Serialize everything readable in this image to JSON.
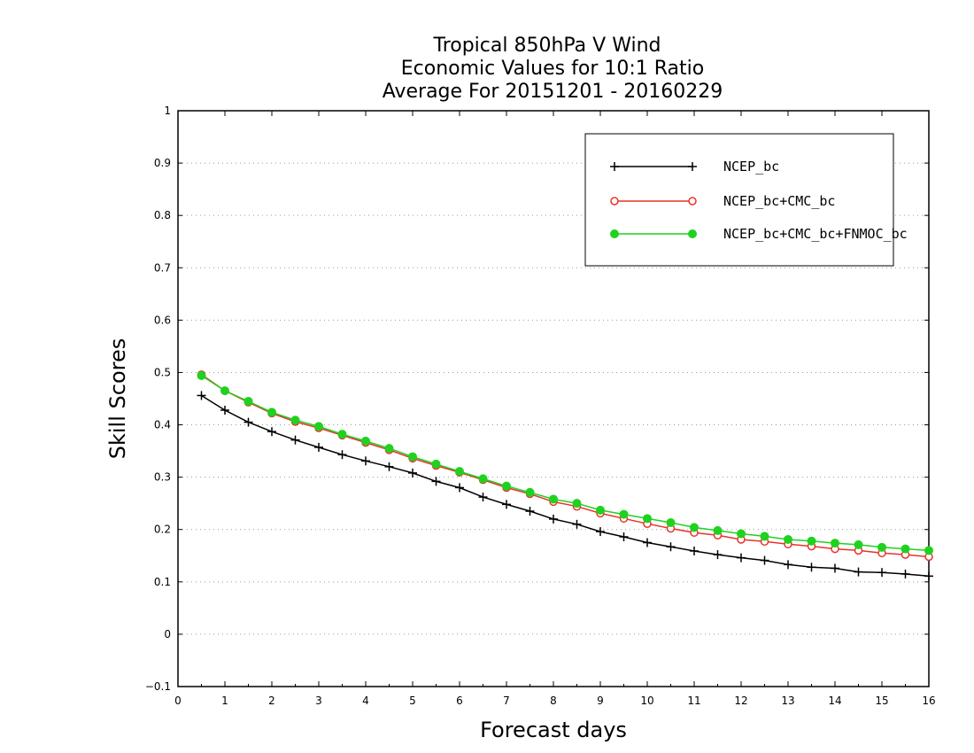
{
  "chart_data": {
    "type": "line",
    "title": [
      "Tropical 850hPa V Wind",
      "Economic Values for 10:1 Ratio",
      "Average For 20151201 - 20160229"
    ],
    "xlabel": "Forecast days",
    "ylabel": "Skill Scores",
    "xlim": [
      0,
      16
    ],
    "ylim": [
      -0.1,
      1
    ],
    "xticks": [
      "0",
      "1",
      "2",
      "3",
      "4",
      "5",
      "6",
      "7",
      "8",
      "9",
      "10",
      "11",
      "12",
      "13",
      "14",
      "15",
      "16"
    ],
    "yticks": [
      "−0.1",
      "0",
      "0.1",
      "0.2",
      "0.3",
      "0.4",
      "0.5",
      "0.6",
      "0.7",
      "0.8",
      "0.9",
      "1"
    ],
    "grid": "horizontal dotted",
    "legend_position": "top-right",
    "x": [
      0.5,
      1,
      1.5,
      2,
      2.5,
      3,
      3.5,
      4,
      4.5,
      5,
      5.5,
      6,
      6.5,
      7,
      7.5,
      8,
      8.5,
      9,
      9.5,
      10,
      10.5,
      11,
      11.5,
      12,
      12.5,
      13,
      13.5,
      14,
      14.5,
      15,
      15.5,
      16
    ],
    "series": [
      {
        "name": "NCEP_bc",
        "color": "#000000",
        "marker": "plus",
        "values": [
          0.456,
          0.428,
          0.405,
          0.387,
          0.371,
          0.357,
          0.343,
          0.331,
          0.32,
          0.308,
          0.292,
          0.28,
          0.262,
          0.248,
          0.235,
          0.22,
          0.21,
          0.196,
          0.186,
          0.175,
          0.167,
          0.159,
          0.152,
          0.146,
          0.141,
          0.133,
          0.128,
          0.126,
          0.119,
          0.118,
          0.115,
          0.111
        ]
      },
      {
        "name": "NCEP_bc+CMC_bc",
        "color": "#e8332a",
        "marker": "open-circle",
        "values": [
          0.496,
          0.465,
          0.443,
          0.422,
          0.406,
          0.394,
          0.38,
          0.366,
          0.352,
          0.336,
          0.322,
          0.309,
          0.295,
          0.28,
          0.268,
          0.253,
          0.244,
          0.231,
          0.221,
          0.211,
          0.202,
          0.194,
          0.189,
          0.181,
          0.177,
          0.172,
          0.168,
          0.163,
          0.16,
          0.155,
          0.152,
          0.148
        ]
      },
      {
        "name": "NCEP_bc+CMC_bc+FNMOC_bc",
        "color": "#1fd21f",
        "marker": "filled-circle",
        "values": [
          0.494,
          0.465,
          0.445,
          0.424,
          0.409,
          0.397,
          0.382,
          0.369,
          0.355,
          0.339,
          0.325,
          0.311,
          0.297,
          0.283,
          0.271,
          0.258,
          0.25,
          0.237,
          0.229,
          0.221,
          0.213,
          0.204,
          0.198,
          0.192,
          0.187,
          0.181,
          0.178,
          0.174,
          0.171,
          0.166,
          0.163,
          0.16
        ]
      }
    ]
  }
}
